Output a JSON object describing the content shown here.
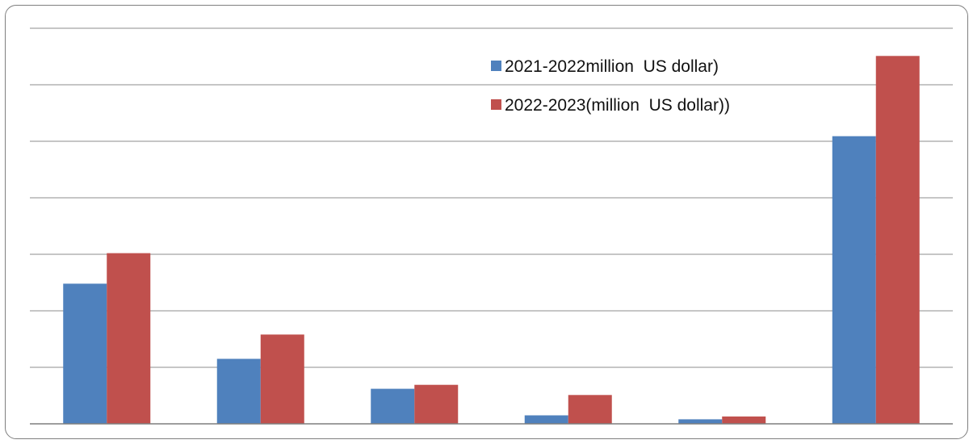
{
  "chart_data": {
    "type": "bar",
    "title": "",
    "xlabel": "",
    "ylabel": "",
    "categories": [
      "",
      "",
      "",
      "",
      "",
      ""
    ],
    "series": [
      {
        "name": "2021-2022million  US dollar)",
        "color": "#4f81bd",
        "values": [
          2.48,
          1.15,
          0.62,
          0.15,
          0.08,
          5.09
        ]
      },
      {
        "name": "2022-2023(million  US dollar))",
        "color": "#c0504d",
        "values": [
          3.02,
          1.58,
          0.69,
          0.51,
          0.13,
          6.51
        ]
      }
    ],
    "ylim": [
      0,
      7
    ],
    "grid": true,
    "legend": "top-right"
  }
}
